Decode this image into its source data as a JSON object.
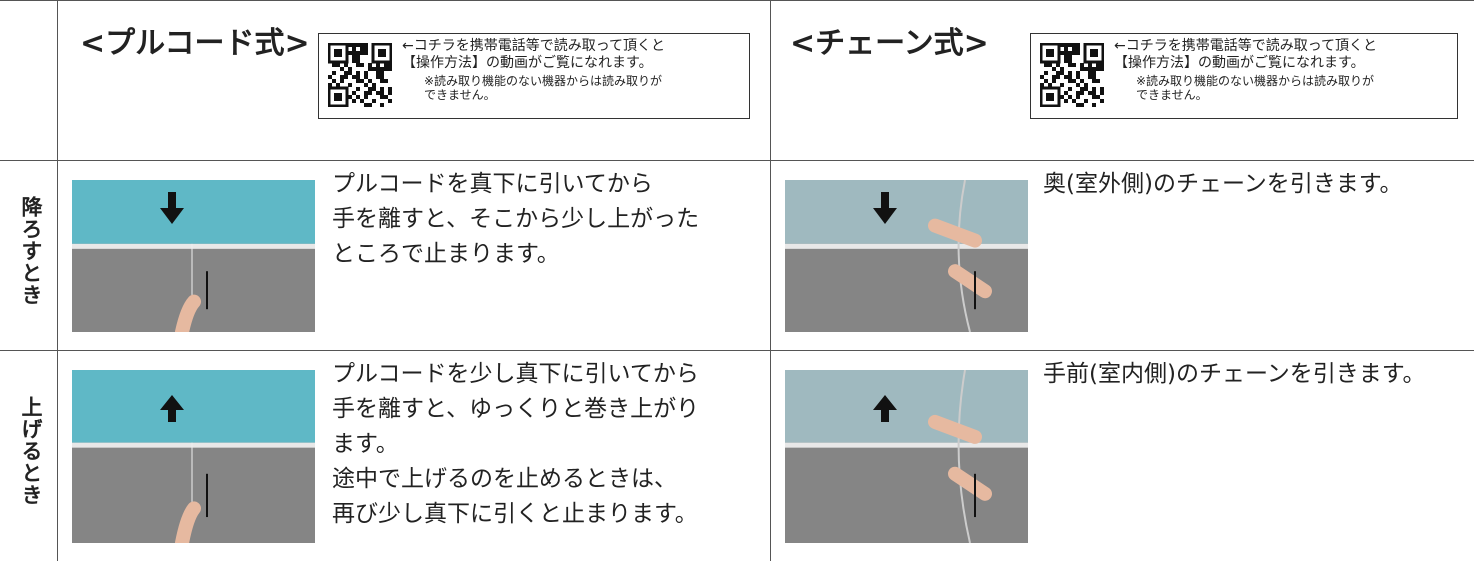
{
  "header": {
    "pull_cord": {
      "title": "<プルコード式>",
      "qr_note": [
        "←コチラを携帯電話等で読み取って頂くと",
        "【操作方法】の動画がご覧になれます。"
      ],
      "qr_caution": [
        "※読み取り機能のない機器からは読み取りが",
        "できません。"
      ]
    },
    "chain": {
      "title": "<チェーン式>",
      "qr_note": [
        "←コチラを携帯電話等で読み取って頂くと",
        "【操作方法】の動画がご覧になれます。"
      ],
      "qr_caution": [
        "※読み取り機能のない機器からは読み取りが",
        "できません。"
      ]
    }
  },
  "rows": [
    {
      "label": "降ろすとき",
      "pull_cord": [
        "プルコードを真下に引いてから",
        "手を離すと、そこから少し上がった",
        "ところで止まります。"
      ],
      "chain": [
        "奥(室外側)のチェーンを引きます。"
      ]
    },
    {
      "label": "上げるとき",
      "pull_cord": [
        "プルコードを少し真下に引いてから",
        "手を離すと、ゆっくりと巻き上がり",
        "ます。",
        "途中で上げるのを止めるときは、",
        "再び少し真下に引くと止まります。"
      ],
      "chain": [
        "手前(室内側)のチェーンを引きます。"
      ]
    }
  ]
}
